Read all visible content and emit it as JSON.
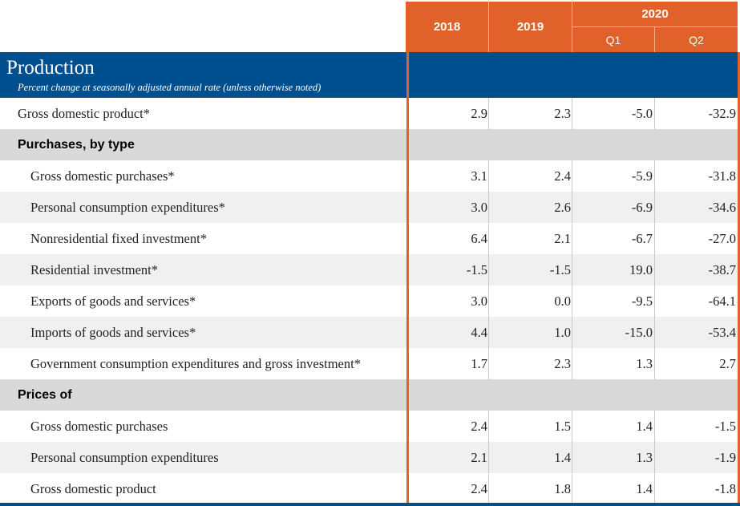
{
  "columns": {
    "year1": "2018",
    "year2": "2019",
    "group": "2020",
    "q1": "Q1",
    "q2": "Q2"
  },
  "section": {
    "title": "Production",
    "subtitle": "Percent change at seasonally adjusted annual rate (unless otherwise noted)"
  },
  "rows": [
    {
      "label": "Gross domestic product*",
      "v2018": "2.9",
      "v2019": "2.3",
      "q1": "-5.0",
      "q2": "-32.9"
    },
    {
      "label": "Purchases, by type"
    },
    {
      "label": "Gross domestic purchases*",
      "v2018": "3.1",
      "v2019": "2.4",
      "q1": "-5.9",
      "q2": "-31.8"
    },
    {
      "label": "Personal consumption expenditures*",
      "v2018": "3.0",
      "v2019": "2.6",
      "q1": "-6.9",
      "q2": "-34.6"
    },
    {
      "label": "Nonresidential fixed investment*",
      "v2018": "6.4",
      "v2019": "2.1",
      "q1": "-6.7",
      "q2": "-27.0"
    },
    {
      "label": "Residential investment*",
      "v2018": "-1.5",
      "v2019": "-1.5",
      "q1": "19.0",
      "q2": "-38.7"
    },
    {
      "label": "Exports of goods and services*",
      "v2018": "3.0",
      "v2019": "0.0",
      "q1": "-9.5",
      "q2": "-64.1"
    },
    {
      "label": "Imports of goods and services*",
      "v2018": "4.4",
      "v2019": "1.0",
      "q1": "-15.0",
      "q2": "-53.4"
    },
    {
      "label": "Government consumption expenditures and gross investment*",
      "v2018": "1.7",
      "v2019": "2.3",
      "q1": "1.3",
      "q2": "2.7"
    },
    {
      "label": "Prices of"
    },
    {
      "label": "Gross domestic purchases",
      "v2018": "2.4",
      "v2019": "1.5",
      "q1": "1.4",
      "q2": "-1.5"
    },
    {
      "label": "Personal consumption expenditures",
      "v2018": "2.1",
      "v2019": "1.4",
      "q1": "1.3",
      "q2": "-1.9"
    },
    {
      "label": "Gross domestic product",
      "v2018": "2.4",
      "v2019": "1.8",
      "q1": "1.4",
      "q2": "-1.8"
    }
  ],
  "colors": {
    "header_orange": "#e0622a",
    "banner_blue": "#00508f",
    "subhead_gray": "#d9d9d9",
    "stripe_gray": "#f0f0f0"
  }
}
